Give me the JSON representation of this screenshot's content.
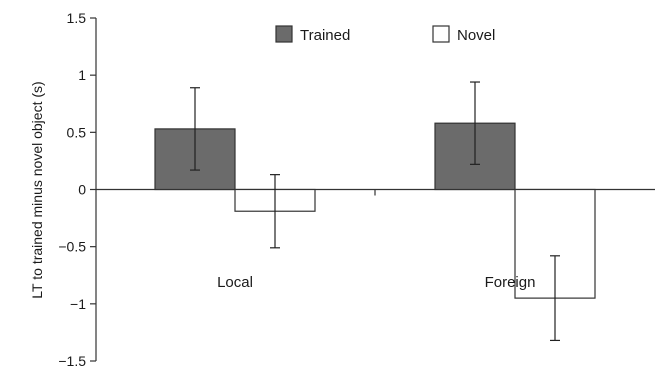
{
  "chart_data": {
    "type": "bar",
    "title": "",
    "xlabel": "",
    "ylabel": "LT to trained minus novel object (s)",
    "categories": [
      "Local",
      "Foreign"
    ],
    "series": [
      {
        "name": "Trained",
        "values": [
          0.53,
          0.58
        ],
        "error": [
          0.36,
          0.36
        ],
        "color": "#6b6b6b"
      },
      {
        "name": "Novel",
        "values": [
          -0.19,
          -0.95
        ],
        "error": [
          0.32,
          0.37
        ],
        "color": "#ffffff"
      }
    ],
    "ylim": [
      -1.5,
      1.5
    ],
    "yticks": [
      1.5,
      1,
      0.5,
      0,
      -0.5,
      -1,
      -1.5
    ],
    "ytick_labels": [
      "1.5",
      "1",
      "0.5",
      "0",
      "−0.5",
      "−1",
      "−1.5"
    ],
    "grid": false,
    "legend_position": "top-center"
  }
}
